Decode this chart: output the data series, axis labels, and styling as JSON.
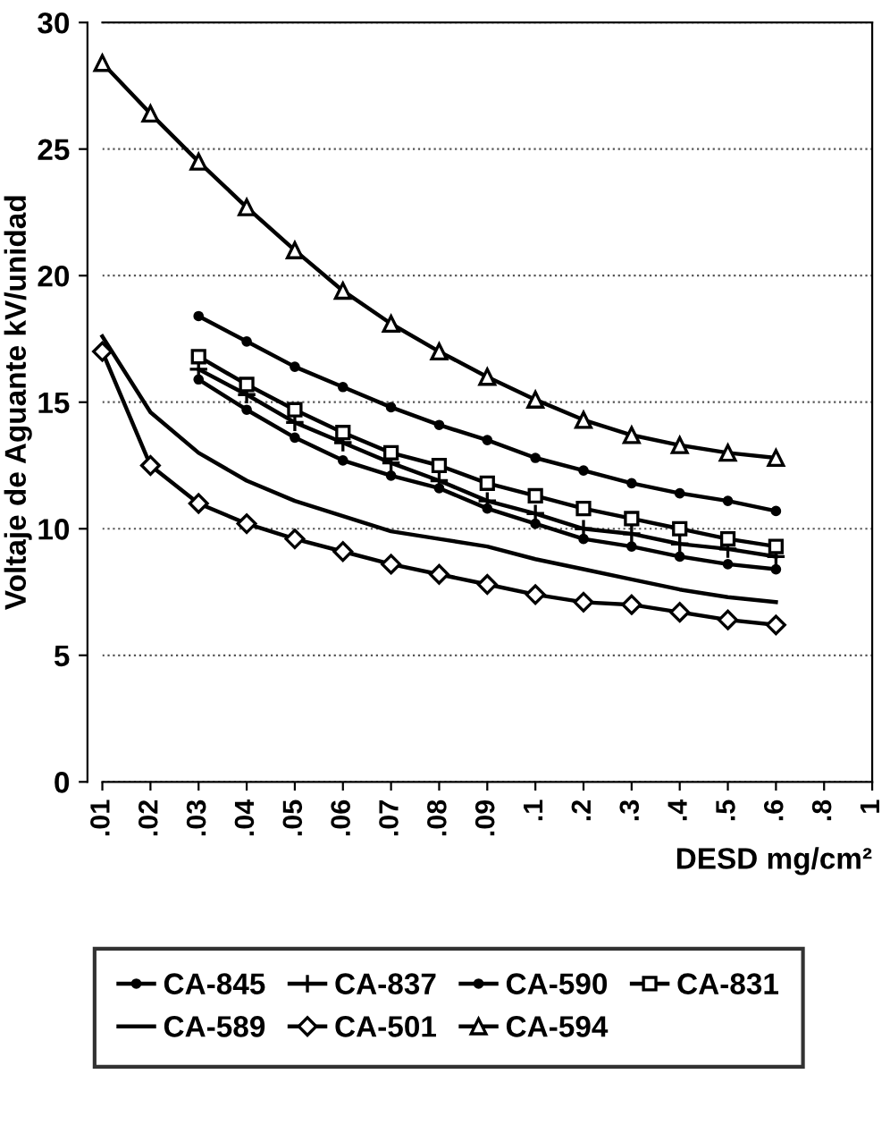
{
  "chart_data": {
    "type": "line",
    "xlabel": "DESD mg/cm²",
    "ylabel": "Voltaje de Aguante kV/unidad",
    "categories": [
      ".01",
      ".02",
      ".03",
      ".04",
      ".05",
      ".06",
      ".07",
      ".08",
      ".09",
      ".1",
      ".2",
      ".3",
      ".4",
      ".5",
      ".6",
      ".8",
      "1"
    ],
    "ylim": [
      0,
      30
    ],
    "yticks": [
      0,
      5,
      10,
      15,
      20,
      25,
      30
    ],
    "grid": "y",
    "legend": "bottom",
    "series": [
      {
        "name": "CA-845",
        "color": "#000000",
        "marker": "circle",
        "values": [
          null,
          null,
          18.4,
          17.4,
          16.4,
          15.6,
          14.8,
          14.1,
          13.5,
          12.8,
          12.3,
          11.8,
          11.4,
          11.1,
          10.7,
          null,
          null
        ]
      },
      {
        "name": "CA-837",
        "color": "#000000",
        "marker": "cross",
        "values": [
          null,
          null,
          16.3,
          15.3,
          14.2,
          13.4,
          12.6,
          11.9,
          11.1,
          10.6,
          10.0,
          9.8,
          9.4,
          9.2,
          8.9,
          null,
          null
        ]
      },
      {
        "name": "CA-590",
        "color": "#000000",
        "marker": "circle",
        "values": [
          null,
          null,
          15.9,
          14.7,
          13.6,
          12.7,
          12.1,
          11.6,
          10.8,
          10.2,
          9.6,
          9.3,
          8.9,
          8.6,
          8.4,
          null,
          null
        ]
      },
      {
        "name": "CA-831",
        "color": "#000000",
        "marker": "square",
        "values": [
          null,
          null,
          16.8,
          15.7,
          14.7,
          13.8,
          13.0,
          12.5,
          11.8,
          11.3,
          10.8,
          10.4,
          10.0,
          9.6,
          9.3,
          null,
          null
        ]
      },
      {
        "name": "CA-589",
        "color": "#000000",
        "marker": "none",
        "values": [
          17.6,
          14.6,
          13.0,
          11.9,
          11.1,
          10.5,
          9.9,
          9.6,
          9.3,
          8.8,
          8.4,
          8.0,
          7.6,
          7.3,
          7.1,
          null,
          null
        ]
      },
      {
        "name": "CA-501",
        "color": "#000000",
        "marker": "diamond",
        "values": [
          17.0,
          12.5,
          11.0,
          10.2,
          9.6,
          9.1,
          8.6,
          8.2,
          7.8,
          7.4,
          7.1,
          7.0,
          6.7,
          6.4,
          6.2,
          null,
          null
        ]
      },
      {
        "name": "CA-594",
        "color": "#000000",
        "marker": "triangle",
        "values": [
          28.4,
          26.4,
          24.5,
          22.7,
          21.0,
          19.4,
          18.1,
          17.0,
          16.0,
          15.1,
          14.3,
          13.7,
          13.3,
          13.0,
          12.8,
          null,
          null
        ]
      }
    ]
  }
}
